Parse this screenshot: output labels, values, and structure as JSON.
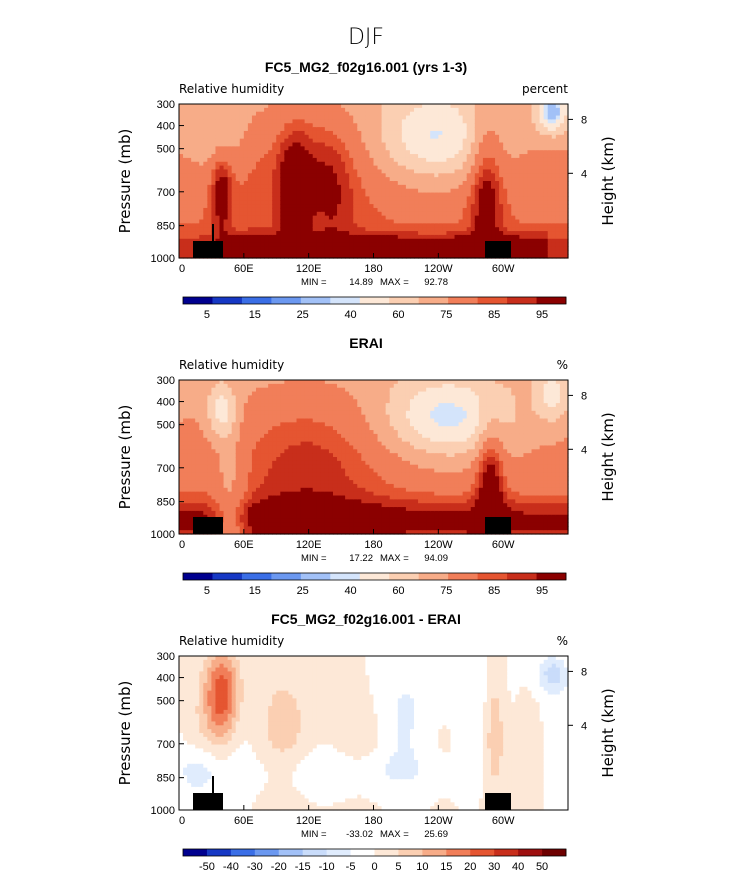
{
  "figure": {
    "suptitle": "DJF"
  },
  "chart_data": [
    {
      "type": "heatmap",
      "title": "FC5_MG2_f02g16.001 (yrs 1-3)",
      "left_label": "Relative humidity",
      "right_label": "percent",
      "ylabel": "Pressure (mb)",
      "ylabel_right": "Height (km)",
      "xticks": [
        "0",
        "60E",
        "120E",
        "180",
        "120W",
        "60W"
      ],
      "yticks": [
        "300",
        "400",
        "500",
        "700",
        "850",
        "1000"
      ],
      "yticks_right": [
        "8",
        "4"
      ],
      "ylim": [
        1000,
        300
      ],
      "stats": {
        "min_label": "MIN =",
        "min": "14.89",
        "max_label": "MAX =",
        "max": "92.78"
      },
      "colorbar": {
        "levels": [
          "5",
          "15",
          "25",
          "40",
          "60",
          "75",
          "85",
          "95"
        ],
        "kind": "abs"
      },
      "field": "model"
    },
    {
      "type": "heatmap",
      "title": "ERAI",
      "left_label": "Relative humidity",
      "right_label": "%",
      "ylabel": "Pressure (mb)",
      "ylabel_right": "Height (km)",
      "xticks": [
        "0",
        "60E",
        "120E",
        "180",
        "120W",
        "60W"
      ],
      "yticks": [
        "300",
        "400",
        "500",
        "700",
        "850",
        "1000"
      ],
      "yticks_right": [
        "8",
        "4"
      ],
      "ylim": [
        1000,
        300
      ],
      "stats": {
        "min_label": "MIN =",
        "min": "17.22",
        "max_label": "MAX =",
        "max": "94.09"
      },
      "colorbar": {
        "levels": [
          "5",
          "15",
          "25",
          "40",
          "60",
          "75",
          "85",
          "95"
        ],
        "kind": "abs"
      },
      "field": "obs"
    },
    {
      "type": "heatmap",
      "title": "FC5_MG2_f02g16.001 - ERAI",
      "left_label": "Relative humidity",
      "right_label": "%",
      "ylabel": "Pressure (mb)",
      "ylabel_right": "Height (km)",
      "xticks": [
        "0",
        "60E",
        "120E",
        "180",
        "120W",
        "60W"
      ],
      "yticks": [
        "300",
        "400",
        "500",
        "700",
        "850",
        "1000"
      ],
      "yticks_right": [
        "8",
        "4"
      ],
      "ylim": [
        1000,
        300
      ],
      "stats": {
        "min_label": "MIN =",
        "min": "-33.02",
        "max_label": "MAX =",
        "max": "25.69"
      },
      "colorbar": {
        "levels": [
          "-50",
          "-40",
          "-30",
          "-20",
          "-15",
          "-10",
          "-5",
          "0",
          "5",
          "10",
          "15",
          "20",
          "30",
          "40",
          "50"
        ],
        "kind": "diff"
      },
      "field": "diff"
    }
  ],
  "colors": {
    "abs_palette": [
      "#00008f",
      "#1638c4",
      "#3a6ee6",
      "#6b98f0",
      "#a2c1f7",
      "#d4e4fb",
      "#fde8d7",
      "#fbcfb2",
      "#f7ac88",
      "#f17e59",
      "#e55531",
      "#c82e1b",
      "#8b0000"
    ],
    "diff_palette": [
      "#00008f",
      "#1638c4",
      "#3a6ee6",
      "#6b98f0",
      "#a2c1f7",
      "#c9dcfa",
      "#e0ecfd",
      "#ffffff",
      "#fde8d7",
      "#fbcfb2",
      "#f7ac88",
      "#f17e59",
      "#e55531",
      "#c82e1b",
      "#9e0f0f",
      "#6e0000"
    ],
    "land_mask": "#000000"
  }
}
